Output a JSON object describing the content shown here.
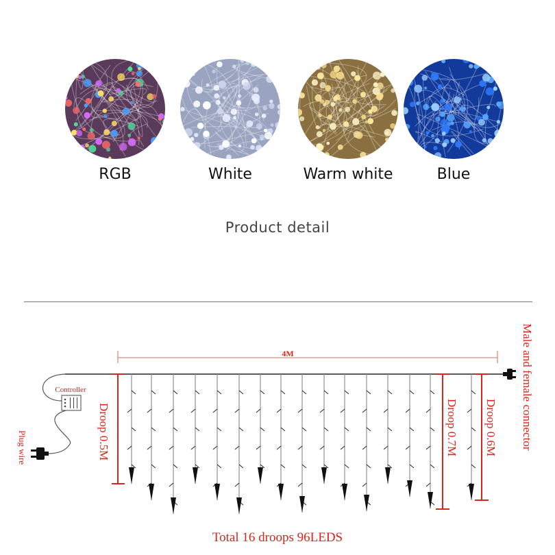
{
  "variants": [
    {
      "label": "RGB",
      "colors": [
        "#d96bff",
        "#50e0a0",
        "#ff6a6a",
        "#4aa0ff",
        "#ffe060"
      ],
      "base": "#5a3a5a"
    },
    {
      "label": "White",
      "colors": [
        "#ffffff",
        "#e8eeff",
        "#d0d8f0"
      ],
      "base": "#9aa4c0"
    },
    {
      "label": "Warm white",
      "colors": [
        "#fff4c8",
        "#ffe9a0",
        "#f5d88a"
      ],
      "base": "#8a7040"
    },
    {
      "label": "Blue",
      "colors": [
        "#5aa8ff",
        "#2f7bff",
        "#9ad0ff"
      ],
      "base": "#123a9a"
    }
  ],
  "section_title": "Product detail",
  "diagram": {
    "length_label": "4M",
    "controller_label": "Controller",
    "plug_label": "Plug wire",
    "connector_label": "Male and female connector",
    "droop_labels": [
      "Droop 0.5M",
      "Droop 0.7M",
      "Droop 0.6M"
    ],
    "total_label": "Total 16 droops 96LEDS",
    "accent_color": "#d9261c"
  }
}
